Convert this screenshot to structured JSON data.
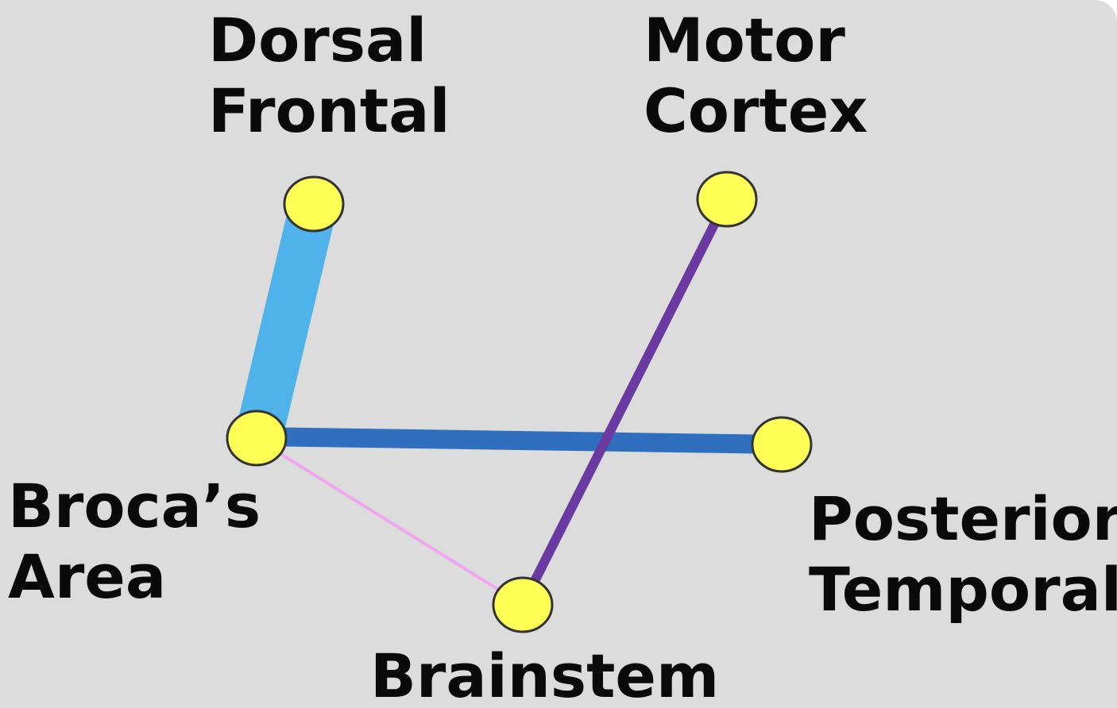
{
  "diagram": {
    "nodes": [
      {
        "id": "dorsal_frontal",
        "label": [
          "Dorsal",
          "Frontal"
        ]
      },
      {
        "id": "motor_cortex",
        "label": [
          "Motor",
          "Cortex"
        ]
      },
      {
        "id": "brocas_area",
        "label": [
          "Broca’s",
          "Area"
        ]
      },
      {
        "id": "posterior_temporal",
        "label": [
          "Posterior",
          "Temporal"
        ]
      },
      {
        "id": "brainstem",
        "label": [
          "Brainstem"
        ]
      }
    ],
    "edges": [
      {
        "from": "brocas_area",
        "to": "dorsal_frontal",
        "color": "#4fb2e8"
      },
      {
        "from": "brocas_area",
        "to": "posterior_temporal",
        "color": "#2f6fbd"
      },
      {
        "from": "motor_cortex",
        "to": "brainstem",
        "color": "#6a3aa0"
      },
      {
        "from": "brocas_area",
        "to": "brainstem",
        "color": "#f0a6f0"
      }
    ],
    "node_fill": "#ffff55",
    "node_stroke": "#333333",
    "background": "#dcdcdc"
  }
}
